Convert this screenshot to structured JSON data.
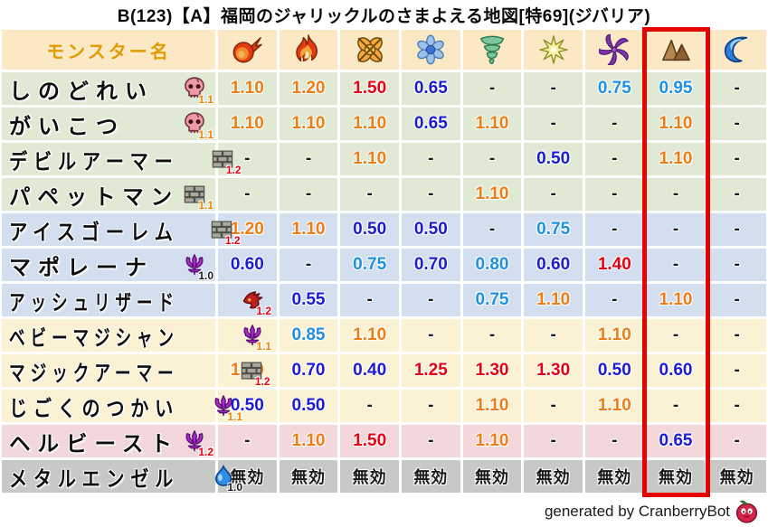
{
  "title": "B(123)【A】福岡のジャリックルのさまよえる地図[特69](ジバリア)",
  "colors": {
    "weakness": "#ed7d14",
    "major_weakness": "#e60012",
    "resist": "#1b1bd1",
    "slight_resist": "#1e90e0",
    "neutral": "#1a1a1a",
    "immune_text": "#1a1a1a",
    "highlight_box": "#e60000",
    "header_text": "#e29b00"
  },
  "table": {
    "name_header": "モンスター名",
    "elements": [
      {
        "id": "fire",
        "icon": "fireball-icon",
        "highlighted": false
      },
      {
        "id": "flame",
        "icon": "flame-icon",
        "highlighted": false
      },
      {
        "id": "explosion",
        "icon": "explosion-icon",
        "highlighted": false
      },
      {
        "id": "ice",
        "icon": "snowflake-icon",
        "highlighted": false
      },
      {
        "id": "wind",
        "icon": "tornado-icon",
        "highlighted": false
      },
      {
        "id": "light",
        "icon": "star-icon",
        "highlighted": false
      },
      {
        "id": "dark",
        "icon": "pinwheel-icon",
        "highlighted": false
      },
      {
        "id": "earth",
        "icon": "rocks-icon",
        "highlighted": true
      },
      {
        "id": "water",
        "icon": "wave-icon",
        "highlighted": false
      }
    ],
    "rows": [
      {
        "name": "しのどれい",
        "family_icon": "skull-icon",
        "multiplier": "1.1",
        "multiplier_color": "orange",
        "tint": "green",
        "cells": [
          {
            "v": "1.10",
            "c": "weakness"
          },
          {
            "v": "1.20",
            "c": "weakness"
          },
          {
            "v": "1.50",
            "c": "major_weakness"
          },
          {
            "v": "0.65",
            "c": "resist"
          },
          {
            "v": "-",
            "c": "neutral"
          },
          {
            "v": "-",
            "c": "neutral"
          },
          {
            "v": "0.75",
            "c": "slight_resist"
          },
          {
            "v": "0.95",
            "c": "slight_resist"
          },
          {
            "v": "-",
            "c": "neutral"
          }
        ]
      },
      {
        "name": "がいこつ",
        "family_icon": "skull-icon",
        "multiplier": "1.1",
        "multiplier_color": "orange",
        "tint": "green",
        "cells": [
          {
            "v": "1.10",
            "c": "weakness"
          },
          {
            "v": "1.10",
            "c": "weakness"
          },
          {
            "v": "1.10",
            "c": "weakness"
          },
          {
            "v": "0.65",
            "c": "resist"
          },
          {
            "v": "1.10",
            "c": "weakness"
          },
          {
            "v": "-",
            "c": "neutral"
          },
          {
            "v": "-",
            "c": "neutral"
          },
          {
            "v": "1.10",
            "c": "weakness"
          },
          {
            "v": "-",
            "c": "neutral"
          }
        ]
      },
      {
        "name": "デビルアーマー",
        "family_icon": "brick-icon",
        "multiplier": "1.2",
        "multiplier_color": "red",
        "tint": "green",
        "cells": [
          {
            "v": "-",
            "c": "neutral"
          },
          {
            "v": "-",
            "c": "neutral"
          },
          {
            "v": "1.10",
            "c": "weakness"
          },
          {
            "v": "-",
            "c": "neutral"
          },
          {
            "v": "-",
            "c": "neutral"
          },
          {
            "v": "0.50",
            "c": "resist"
          },
          {
            "v": "-",
            "c": "neutral"
          },
          {
            "v": "1.10",
            "c": "weakness"
          },
          {
            "v": "-",
            "c": "neutral"
          }
        ]
      },
      {
        "name": "パペットマン",
        "family_icon": "brick-icon",
        "multiplier": "1.1",
        "multiplier_color": "orange",
        "tint": "green",
        "cells": [
          {
            "v": "-",
            "c": "neutral"
          },
          {
            "v": "-",
            "c": "neutral"
          },
          {
            "v": "-",
            "c": "neutral"
          },
          {
            "v": "-",
            "c": "neutral"
          },
          {
            "v": "1.10",
            "c": "weakness"
          },
          {
            "v": "-",
            "c": "neutral"
          },
          {
            "v": "-",
            "c": "neutral"
          },
          {
            "v": "-",
            "c": "neutral"
          },
          {
            "v": "-",
            "c": "neutral"
          }
        ]
      },
      {
        "name": "アイスゴーレム",
        "family_icon": "brick-icon",
        "multiplier": "1.2",
        "multiplier_color": "red",
        "tint": "blue",
        "cells": [
          {
            "v": "1.20",
            "c": "weakness"
          },
          {
            "v": "1.10",
            "c": "weakness"
          },
          {
            "v": "0.50",
            "c": "resist"
          },
          {
            "v": "0.50",
            "c": "resist"
          },
          {
            "v": "-",
            "c": "neutral"
          },
          {
            "v": "0.75",
            "c": "slight_resist"
          },
          {
            "v": "-",
            "c": "neutral"
          },
          {
            "v": "-",
            "c": "neutral"
          },
          {
            "v": "-",
            "c": "neutral"
          }
        ]
      },
      {
        "name": "マポレーナ",
        "family_icon": "trident-icon",
        "multiplier": "1.0",
        "multiplier_color": "black",
        "tint": "blue",
        "cells": [
          {
            "v": "0.60",
            "c": "resist"
          },
          {
            "v": "-",
            "c": "neutral"
          },
          {
            "v": "0.75",
            "c": "slight_resist"
          },
          {
            "v": "0.70",
            "c": "resist"
          },
          {
            "v": "0.80",
            "c": "slight_resist"
          },
          {
            "v": "0.60",
            "c": "resist"
          },
          {
            "v": "1.40",
            "c": "major_weakness"
          },
          {
            "v": "-",
            "c": "neutral"
          },
          {
            "v": "-",
            "c": "neutral"
          }
        ]
      },
      {
        "name": "アッシュリザード",
        "family_icon": "dragon-icon",
        "multiplier": "1.2",
        "multiplier_color": "red",
        "tint": "blue",
        "cells": [
          {
            "v": "-",
            "c": "neutral"
          },
          {
            "v": "0.55",
            "c": "resist"
          },
          {
            "v": "-",
            "c": "neutral"
          },
          {
            "v": "-",
            "c": "neutral"
          },
          {
            "v": "0.75",
            "c": "slight_resist"
          },
          {
            "v": "1.10",
            "c": "weakness"
          },
          {
            "v": "-",
            "c": "neutral"
          },
          {
            "v": "1.10",
            "c": "weakness"
          },
          {
            "v": "-",
            "c": "neutral"
          }
        ]
      },
      {
        "name": "ベビーマジシャン",
        "family_icon": "trident-icon",
        "multiplier": "1.1",
        "multiplier_color": "orange",
        "tint": "cream",
        "cells": [
          {
            "v": "-",
            "c": "neutral"
          },
          {
            "v": "0.85",
            "c": "slight_resist"
          },
          {
            "v": "1.10",
            "c": "weakness"
          },
          {
            "v": "-",
            "c": "neutral"
          },
          {
            "v": "-",
            "c": "neutral"
          },
          {
            "v": "-",
            "c": "neutral"
          },
          {
            "v": "1.10",
            "c": "weakness"
          },
          {
            "v": "-",
            "c": "neutral"
          },
          {
            "v": "-",
            "c": "neutral"
          }
        ]
      },
      {
        "name": "マジックアーマー",
        "family_icon": "brick-icon",
        "multiplier": "1.2",
        "multiplier_color": "red",
        "tint": "cream",
        "cells": [
          {
            "v": "1.10",
            "c": "weakness"
          },
          {
            "v": "0.70",
            "c": "resist"
          },
          {
            "v": "0.40",
            "c": "resist"
          },
          {
            "v": "1.25",
            "c": "major_weakness"
          },
          {
            "v": "1.30",
            "c": "major_weakness"
          },
          {
            "v": "1.30",
            "c": "major_weakness"
          },
          {
            "v": "0.50",
            "c": "resist"
          },
          {
            "v": "0.60",
            "c": "resist"
          },
          {
            "v": "-",
            "c": "neutral"
          }
        ]
      },
      {
        "name": "じごくのつかい",
        "family_icon": "trident-icon",
        "multiplier": "1.1",
        "multiplier_color": "orange",
        "tint": "cream",
        "cells": [
          {
            "v": "0.50",
            "c": "resist"
          },
          {
            "v": "0.50",
            "c": "resist"
          },
          {
            "v": "-",
            "c": "neutral"
          },
          {
            "v": "-",
            "c": "neutral"
          },
          {
            "v": "1.10",
            "c": "weakness"
          },
          {
            "v": "-",
            "c": "neutral"
          },
          {
            "v": "1.10",
            "c": "weakness"
          },
          {
            "v": "-",
            "c": "neutral"
          },
          {
            "v": "-",
            "c": "neutral"
          }
        ]
      },
      {
        "name": "ヘルビースト",
        "family_icon": "trident-icon",
        "multiplier": "1.2",
        "multiplier_color": "red",
        "tint": "pink",
        "cells": [
          {
            "v": "-",
            "c": "neutral"
          },
          {
            "v": "1.10",
            "c": "weakness"
          },
          {
            "v": "1.50",
            "c": "major_weakness"
          },
          {
            "v": "-",
            "c": "neutral"
          },
          {
            "v": "1.10",
            "c": "weakness"
          },
          {
            "v": "-",
            "c": "neutral"
          },
          {
            "v": "-",
            "c": "neutral"
          },
          {
            "v": "0.65",
            "c": "resist"
          },
          {
            "v": "-",
            "c": "neutral"
          }
        ]
      },
      {
        "name": "メタルエンゼル",
        "family_icon": "slime-icon",
        "multiplier": "1.0",
        "multiplier_color": "black",
        "tint": "gray",
        "cells": [
          {
            "v": "無効",
            "c": "immune_text"
          },
          {
            "v": "無効",
            "c": "immune_text"
          },
          {
            "v": "無効",
            "c": "immune_text"
          },
          {
            "v": "無効",
            "c": "immune_text"
          },
          {
            "v": "無効",
            "c": "immune_text"
          },
          {
            "v": "無効",
            "c": "immune_text"
          },
          {
            "v": "無効",
            "c": "immune_text"
          },
          {
            "v": "無効",
            "c": "immune_text"
          },
          {
            "v": "無効",
            "c": "immune_text"
          }
        ]
      }
    ]
  },
  "footer": {
    "credit": "generated by CranberryBot",
    "icon": "cranberry-icon"
  }
}
